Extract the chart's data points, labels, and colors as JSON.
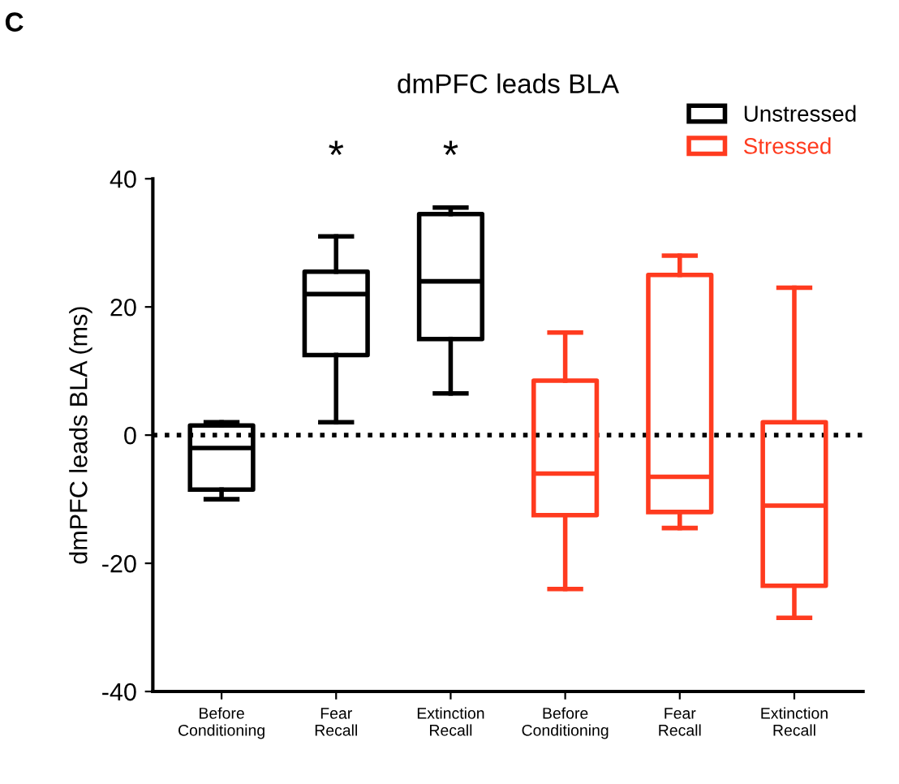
{
  "chart_data": {
    "type": "box",
    "title": "dmPFC leads BLA",
    "ylabel": "dmPFC leads BLA (ms)",
    "categories": [
      "Before\nConditioning",
      "Fear\nRecall",
      "Extinction\nRecall",
      "Before\nConditioning",
      "Fear\nRecall",
      "Extinction\nRecall"
    ],
    "series": [
      {
        "name": "Unstressed",
        "color": "#000000",
        "boxes": [
          {
            "low": -10,
            "q1": -8.5,
            "median": -2,
            "q3": 1.5,
            "high": 2
          },
          {
            "low": 2,
            "q1": 12.5,
            "median": 22,
            "q3": 25.5,
            "high": 31
          },
          {
            "low": 6.5,
            "q1": 15,
            "median": 24,
            "q3": 34.5,
            "high": 35.5
          },
          null,
          null,
          null
        ]
      },
      {
        "name": "Stressed",
        "color": "#ff3b1f",
        "boxes": [
          null,
          null,
          null,
          {
            "low": -24,
            "q1": -12.5,
            "median": -6,
            "q3": 8.5,
            "high": 16
          },
          {
            "low": -14.5,
            "q1": -12,
            "median": -6.5,
            "q3": 25,
            "high": 28
          },
          {
            "low": -28.5,
            "q1": -23.5,
            "median": -11,
            "q3": 2,
            "high": 23
          }
        ]
      }
    ],
    "ylim": [
      -40,
      40
    ],
    "yticks": [
      -40,
      -20,
      0,
      20,
      40
    ],
    "grid": false,
    "legend": "top right",
    "ref_lines": [
      {
        "axis": "y",
        "value": 0,
        "color": "#000000",
        "line_style": "dotted"
      }
    ],
    "annotations": [
      "C",
      "*",
      "*"
    ]
  }
}
